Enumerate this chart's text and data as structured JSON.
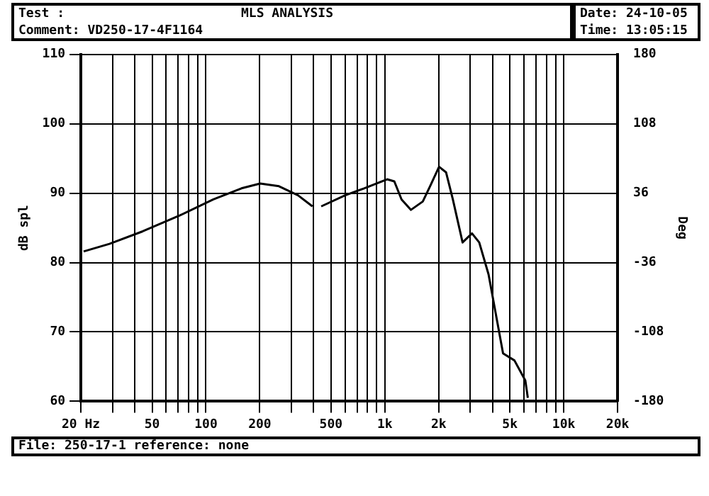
{
  "chart_data": {
    "type": "line",
    "title": "MLS ANALYSIS",
    "annotations": [
      "Test :",
      "Date: 24-10-05",
      "Comment: VD250-17-4F1164",
      "Time: 13:05:15",
      "File: 250-17-1 reference: none"
    ],
    "ylabel": "dB spl",
    "y2label": "Deg",
    "x": [
      20.7,
      28.9,
      44.3,
      71.6,
      110,
      158,
      201,
      256,
      327,
      394,
      420,
      441,
      600,
      766,
      1030,
      1130,
      1240,
      1400,
      1630,
      1790,
      2010,
      2200,
      2400,
      2720,
      3070,
      3370,
      3800,
      4580,
      5300,
      6100,
      6300
    ],
    "series": [
      {
        "color": "#000000",
        "values": [
          81.6,
          82.7,
          84.5,
          86.8,
          89.1,
          90.7,
          91.4,
          91.0,
          89.7,
          88.1,
          null,
          88.1,
          89.7,
          90.7,
          92.0,
          91.7,
          89.1,
          87.6,
          88.8,
          91.0,
          93.8,
          93.0,
          89.1,
          82.9,
          84.2,
          82.9,
          78.3,
          66.9,
          65.9,
          63.0,
          60.5
        ]
      }
    ],
    "xlim": [
      20,
      20000
    ],
    "xticks": [
      {
        "value": 20,
        "label": "20 Hz"
      },
      {
        "value": 30,
        "label": null
      },
      {
        "value": 40,
        "label": null
      },
      50,
      {
        "value": 60,
        "label": null
      },
      {
        "value": 70,
        "label": null
      },
      {
        "value": 80,
        "label": null
      },
      {
        "value": 90,
        "label": null
      },
      100,
      {
        "value": 200,
        "label": "200"
      },
      {
        "value": 300,
        "label": null
      },
      {
        "value": 400,
        "label": null
      },
      500,
      {
        "value": 600,
        "label": null
      },
      {
        "value": 700,
        "label": null
      },
      {
        "value": 800,
        "label": null
      },
      {
        "value": 900,
        "label": null
      },
      {
        "value": 1000,
        "label": "1k"
      },
      {
        "value": 2000,
        "label": "2k"
      },
      {
        "value": 3000,
        "label": null
      },
      {
        "value": 4000,
        "label": null
      },
      {
        "value": 5000,
        "label": "5k"
      },
      {
        "value": 6000,
        "label": null
      },
      {
        "value": 7000,
        "label": null
      },
      {
        "value": 8000,
        "label": null
      },
      {
        "value": 9000,
        "label": null
      },
      {
        "value": 10000,
        "label": "10k"
      },
      {
        "value": 20000,
        "label": "20k"
      }
    ],
    "log": "x",
    "ylim": [
      60,
      110
    ],
    "yticks": [
      60,
      70,
      80,
      90,
      100,
      110
    ],
    "y2lim": [
      -180,
      180
    ],
    "y2ticks": [
      -180,
      -108,
      -36,
      36,
      108,
      180
    ],
    "grid": true,
    "legend": false,
    "marker": "none",
    "line_style": "solid"
  }
}
